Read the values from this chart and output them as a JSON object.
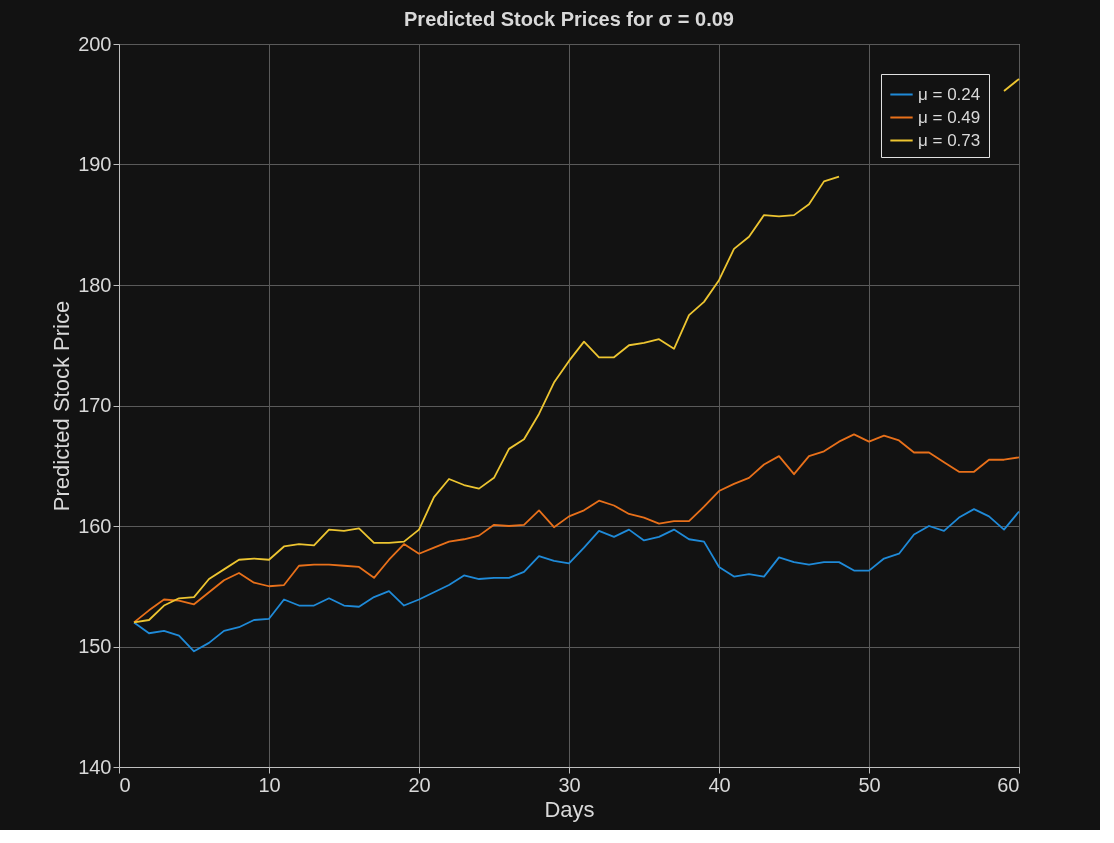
{
  "chart_data": {
    "type": "line",
    "title": "Predicted Stock Prices for σ = 0.09",
    "xlabel": "Days",
    "ylabel": "Predicted Stock Price",
    "x": [
      1,
      2,
      3,
      4,
      5,
      6,
      7,
      8,
      9,
      10,
      11,
      12,
      13,
      14,
      15,
      16,
      17,
      18,
      19,
      20,
      21,
      22,
      23,
      24,
      25,
      26,
      27,
      28,
      29,
      30,
      31,
      32,
      33,
      34,
      35,
      36,
      37,
      38,
      39,
      40,
      41,
      42,
      43,
      44,
      45,
      46,
      47,
      48,
      49,
      50,
      51,
      52,
      53,
      54,
      55,
      56,
      57,
      58,
      59,
      60
    ],
    "series": [
      {
        "name": "μ = 0.24",
        "color": "#1f8ad8",
        "values": [
          152,
          151.1,
          151.3,
          150.9,
          149.6,
          150.3,
          151.3,
          151.6,
          152.2,
          152.3,
          153.9,
          153.4,
          153.4,
          154,
          153.4,
          153.3,
          154.1,
          154.6,
          153.4,
          153.9,
          154.5,
          155.1,
          155.9,
          155.6,
          155.7,
          155.7,
          156.2,
          157.5,
          157.1,
          156.9,
          158.2,
          159.6,
          159.1,
          159.7,
          158.8,
          159.1,
          159.7,
          158.9,
          158.7,
          156.6,
          155.8,
          156,
          155.8,
          157.4,
          157,
          156.8,
          157,
          157,
          156.3,
          156.3,
          157.3,
          157.7,
          159.3,
          160,
          159.6,
          160.7,
          161.4,
          160.8,
          159.7,
          161.2
        ]
      },
      {
        "name": "μ = 0.49",
        "color": "#e8701a",
        "values": [
          152,
          153,
          153.9,
          153.8,
          153.5,
          154.5,
          155.5,
          156.1,
          155.3,
          155,
          155.1,
          156.7,
          156.8,
          156.8,
          156.7,
          156.6,
          155.7,
          157.2,
          158.5,
          157.7,
          158.2,
          158.7,
          158.9,
          159.2,
          160.1,
          160,
          160.1,
          161.3,
          159.9,
          160.8,
          161.3,
          162.1,
          161.7,
          161,
          160.7,
          160.2,
          160.4,
          160.4,
          161.6,
          162.9,
          163.5,
          164,
          165.1,
          165.8,
          164.3,
          165.8,
          166.2,
          167,
          167.6,
          167,
          167.5,
          167.1,
          166.1,
          166.1,
          165.3,
          164.5,
          164.5,
          165.5,
          165.5,
          165.7
        ]
      },
      {
        "name": "μ = 0.73",
        "color": "#edc531",
        "values": [
          152,
          152.2,
          153.4,
          154,
          154.1,
          155.6,
          156.4,
          157.2,
          157.3,
          157.2,
          158.3,
          158.5,
          158.4,
          159.7,
          159.6,
          159.8,
          158.6,
          158.6,
          158.7,
          159.7,
          162.4,
          163.9,
          163.4,
          163.1,
          164,
          166.4,
          167.2,
          169.3,
          171.9,
          173.7,
          175.3,
          174,
          174,
          175,
          175.2,
          175.5,
          174.7,
          177.5,
          178.6,
          180.4,
          183,
          184,
          185.8,
          185.7,
          185.8,
          186.7,
          188.6,
          189,
          null,
          null,
          null,
          null,
          null,
          null,
          null,
          null,
          null,
          null,
          196.1,
          197.1
        ]
      }
    ],
    "xlim": [
      0,
      60
    ],
    "xticks": [
      0,
      10,
      20,
      30,
      40,
      50,
      60
    ],
    "ylim": [
      140,
      200
    ],
    "yticks": [
      140,
      150,
      160,
      170,
      180,
      190,
      200
    ],
    "grid": true,
    "legend": "top right",
    "line_style": "solid",
    "marker": "none"
  }
}
